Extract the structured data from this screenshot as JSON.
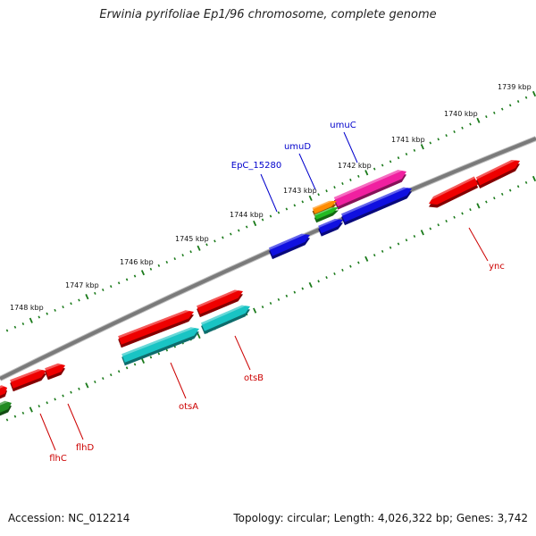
{
  "title": "Erwinia pyrifoliae Ep1/96 chromosome, complete genome",
  "footer": {
    "accession": "Accession: NC_012214",
    "topology": "Topology: circular; Length: 4,026,322 bp; Genes: 3,742"
  },
  "colors": {
    "backbone": "#808080",
    "tick": "#1a7a1a",
    "red": "#ee0000",
    "cyan": "#19c4c4",
    "blue": "#1010e0",
    "magenta": "#f020a0",
    "orange": "#ff8c00",
    "green": "#22bb22",
    "darkgreen": "#228b22",
    "label_blue": "#0000cc",
    "label_red": "#cc0000"
  },
  "kbp_labels": [
    "1739 kbp",
    "1740 kbp",
    "1741 kbp",
    "1742 kbp",
    "1743 kbp",
    "1744 kbp",
    "1745 kbp",
    "1746 kbp",
    "1747 kbp",
    "1748 kbp"
  ],
  "genes_top": [
    "EpC_15280",
    "umuD",
    "umuC"
  ],
  "genes_bottom": [
    "ync",
    "otsB",
    "otsA",
    "flhD",
    "flhC"
  ]
}
